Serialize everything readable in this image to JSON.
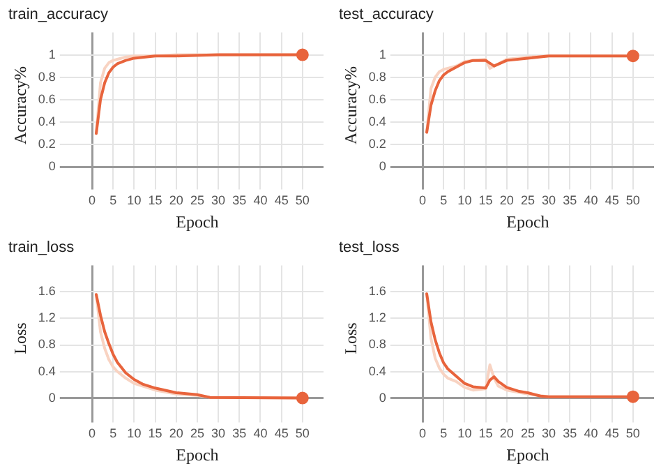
{
  "chart_data": [
    {
      "type": "line",
      "title": "train_accuracy",
      "xlabel": "Epoch",
      "ylabel": "Accuracy%",
      "xlim": [
        -5,
        55
      ],
      "xticks": [
        0,
        5,
        10,
        15,
        20,
        25,
        30,
        35,
        40,
        45,
        50
      ],
      "ylim": [
        -0.1,
        1.2
      ],
      "yticks": [
        0,
        0.2,
        0.4,
        0.6,
        0.8,
        1
      ],
      "grid": true,
      "legend": false,
      "series": [
        {
          "type": "scatter",
          "color": "#e8643c",
          "marker": "circle",
          "x": [
            50
          ],
          "values": [
            1
          ]
        },
        {
          "color": "#e8643c",
          "x": [
            1,
            2,
            3,
            4,
            5,
            6,
            8,
            10,
            15,
            20,
            30,
            50
          ],
          "values": [
            0.3,
            0.6,
            0.75,
            0.84,
            0.89,
            0.92,
            0.95,
            0.97,
            0.99,
            0.99,
            1,
            1
          ]
        },
        {
          "color": "#f8d3c2",
          "x": [
            1,
            2,
            3,
            4,
            5,
            6,
            8,
            10,
            15,
            20,
            30,
            50
          ],
          "values": [
            0.3,
            0.75,
            0.88,
            0.93,
            0.95,
            0.96,
            0.98,
            0.99,
            0.99,
            1,
            1,
            1
          ]
        }
      ]
    },
    {
      "type": "line",
      "title": "test_accuracy",
      "xlabel": "Epoch",
      "ylabel": "Accuracy%",
      "xlim": [
        -5,
        55
      ],
      "xticks": [
        0,
        5,
        10,
        15,
        20,
        25,
        30,
        35,
        40,
        45,
        50
      ],
      "ylim": [
        -0.1,
        1.2
      ],
      "yticks": [
        0,
        0.2,
        0.4,
        0.6,
        0.8,
        1
      ],
      "grid": true,
      "legend": false,
      "series": [
        {
          "type": "scatter",
          "color": "#e8643c",
          "marker": "circle",
          "x": [
            50
          ],
          "values": [
            0.99
          ]
        },
        {
          "color": "#e8643c",
          "x": [
            1,
            2,
            3,
            4,
            5,
            6,
            8,
            10,
            12,
            15,
            17,
            20,
            25,
            30,
            50
          ],
          "values": [
            0.31,
            0.55,
            0.68,
            0.77,
            0.82,
            0.85,
            0.89,
            0.93,
            0.95,
            0.95,
            0.9,
            0.95,
            0.97,
            0.99,
            0.99
          ]
        },
        {
          "color": "#f8d3c2",
          "x": [
            1,
            2,
            3,
            4,
            5,
            6,
            8,
            10,
            12,
            15,
            16,
            17,
            20,
            25,
            30,
            50
          ],
          "values": [
            0.31,
            0.7,
            0.8,
            0.85,
            0.87,
            0.88,
            0.9,
            0.94,
            0.95,
            0.96,
            0.88,
            0.9,
            0.96,
            0.98,
            0.99,
            0.99
          ]
        }
      ]
    },
    {
      "type": "line",
      "title": "train_loss",
      "xlabel": "Epoch",
      "ylabel": "Loss",
      "xlim": [
        -5,
        55
      ],
      "xticks": [
        0,
        5,
        10,
        15,
        20,
        25,
        30,
        35,
        40,
        45,
        50
      ],
      "ylim": [
        -0.2,
        2
      ],
      "yticks": [
        0,
        0.4,
        0.8,
        1.2,
        1.6
      ],
      "grid": true,
      "legend": false,
      "series": [
        {
          "type": "scatter",
          "color": "#e8643c",
          "marker": "circle",
          "x": [
            50
          ],
          "values": [
            0
          ]
        },
        {
          "color": "#e8643c",
          "x": [
            1,
            2,
            3,
            4,
            5,
            6,
            8,
            10,
            12,
            15,
            20,
            25,
            28,
            50
          ],
          "values": [
            1.56,
            1.25,
            1.0,
            0.82,
            0.66,
            0.54,
            0.38,
            0.28,
            0.21,
            0.15,
            0.08,
            0.05,
            0.01,
            0
          ]
        },
        {
          "color": "#f8d3c2",
          "x": [
            1,
            2,
            3,
            4,
            5,
            6,
            8,
            10,
            15,
            20,
            25,
            28,
            50
          ],
          "values": [
            1.56,
            1.0,
            0.75,
            0.58,
            0.47,
            0.4,
            0.3,
            0.22,
            0.12,
            0.06,
            0.04,
            0.01,
            0
          ]
        }
      ]
    },
    {
      "type": "line",
      "title": "test_loss",
      "xlabel": "Epoch",
      "ylabel": "Loss",
      "xlim": [
        -5,
        55
      ],
      "xticks": [
        0,
        5,
        10,
        15,
        20,
        25,
        30,
        35,
        40,
        45,
        50
      ],
      "ylim": [
        -0.2,
        2
      ],
      "yticks": [
        0,
        0.4,
        0.8,
        1.2,
        1.6
      ],
      "grid": true,
      "legend": false,
      "series": [
        {
          "type": "scatter",
          "color": "#e8643c",
          "marker": "circle",
          "x": [
            50
          ],
          "values": [
            0.02
          ]
        },
        {
          "color": "#e8643c",
          "x": [
            1,
            2,
            3,
            4,
            5,
            6,
            8,
            10,
            12,
            15,
            16,
            17,
            18,
            20,
            23,
            25,
            28,
            30,
            50
          ],
          "values": [
            1.57,
            1.15,
            0.88,
            0.68,
            0.53,
            0.44,
            0.33,
            0.22,
            0.17,
            0.15,
            0.27,
            0.32,
            0.25,
            0.16,
            0.1,
            0.08,
            0.03,
            0.02,
            0.02
          ]
        },
        {
          "color": "#f8d3c2",
          "x": [
            1,
            2,
            3,
            4,
            5,
            6,
            8,
            10,
            12,
            15,
            16,
            17,
            18,
            20,
            25,
            30,
            50
          ],
          "values": [
            1.57,
            0.9,
            0.6,
            0.45,
            0.36,
            0.3,
            0.25,
            0.16,
            0.12,
            0.14,
            0.5,
            0.3,
            0.18,
            0.12,
            0.06,
            0.02,
            0.02
          ]
        }
      ]
    }
  ]
}
